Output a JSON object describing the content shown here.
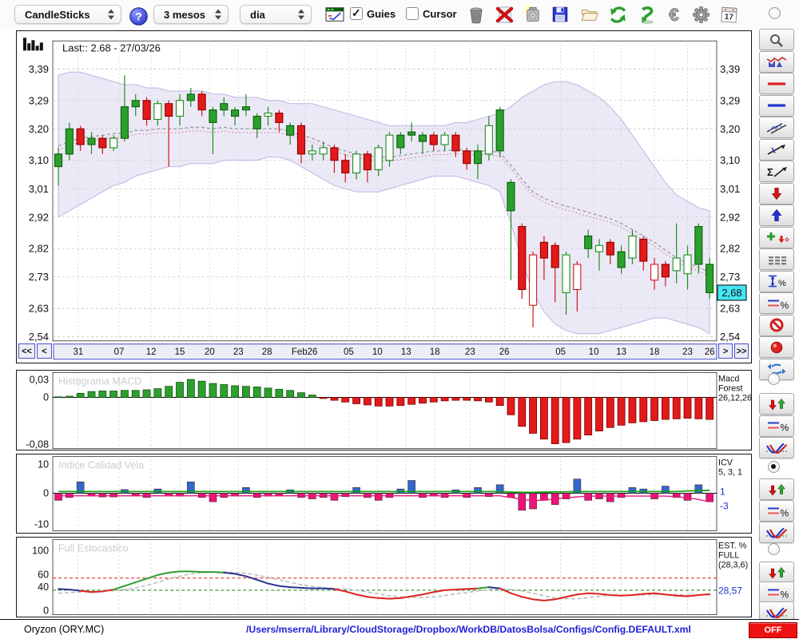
{
  "toolbar": {
    "chart_type_select": "CandleSticks",
    "period_select": "3 mesos",
    "interval_select": "dia",
    "guies_label": "Guies",
    "guies_checked": true,
    "cursor_label": "Cursor",
    "cursor_checked": false,
    "calendar_day": "17",
    "icons": [
      "help",
      "chart-config",
      "trash",
      "delete-red-x",
      "snapshot",
      "save",
      "open-folder",
      "refresh",
      "sync",
      "euro",
      "settings",
      "calendar"
    ]
  },
  "main_chart": {
    "last_label": "Last:: 2.68 - 27/03/26",
    "price_tag": "2,68",
    "nav": [
      "<<",
      "<",
      ">",
      ">>"
    ]
  },
  "panels": {
    "macd": {
      "title": "Histograma MACD",
      "y_top": "0,03",
      "y_zero": "0",
      "y_bottom": "-0,08",
      "right_lines": [
        "Macd",
        "Forest",
        "26,12,26"
      ]
    },
    "icv": {
      "title": "Indice Calidad Vela",
      "y_top": "10",
      "y_zero": "0",
      "y_bottom": "-10",
      "right_lines": [
        "ICV",
        "5, 3, 1"
      ],
      "value1": "1",
      "value2": "-3"
    },
    "stoch": {
      "title": "Full Estocastico",
      "y_labels": [
        "100",
        "60",
        "40",
        "0"
      ],
      "right_lines": [
        "EST. %",
        "FULL",
        "(28,3,6)"
      ],
      "value": "28,57"
    }
  },
  "sidebar": {
    "top_radio_selected": false,
    "tool_buttons": [
      "zoom",
      "price-volume-chart",
      "red-horizontal-line",
      "blue-horizontal-line",
      "channel",
      "trend-line",
      "sum-trend",
      "red-down-arrow",
      "blue-up-arrow",
      "add-markers",
      "data-table",
      "vertical-percent",
      "percent-lines",
      "disable",
      "record",
      "refresh-panels"
    ],
    "panel_groups": [
      {
        "panel": "macd",
        "radio_selected": false,
        "buttons": [
          "signal-arrows",
          "percent-lines",
          "indicator-curves"
        ]
      },
      {
        "panel": "icv",
        "radio_selected": true,
        "buttons": [
          "signal-arrows",
          "percent-lines",
          "indicator-curves"
        ]
      },
      {
        "panel": "stoch",
        "radio_selected": false,
        "buttons": [
          "signal-arrows",
          "percent-lines",
          "indicator-curves"
        ]
      }
    ]
  },
  "statusbar": {
    "symbol": "Oryzon (ORY.MC)",
    "config_path": "/Users/mserra/Library/CloudStorage/Dropbox/WorkDB/DatosBolsa/Configs/Config.DEFAULT.xml",
    "off_label": "OFF"
  },
  "colors": {
    "candle_up": "#2CA02C",
    "candle_up_stroke": "#0C5C0C",
    "candle_down": "#E31A1A",
    "candle_down_stroke": "#8B0000",
    "hollow_up_stroke": "#1E8E1E",
    "hollow_down_stroke": "#D01818",
    "band_fill": "#DAD4F0",
    "band_edge": "#B8AEE0",
    "sma_dash": "#909090",
    "sma_red": "#C87070",
    "macd_pos": "#2CA02C",
    "macd_neg": "#E31A1A",
    "icv_pos": "#3366CC",
    "icv_neg": "#EE1177",
    "icv_line_green": "#18A018",
    "icv_line_magenta": "#E8187D",
    "stoch_navy": "#283593",
    "stoch_green": "#2E9E2E",
    "stoch_red": "#DD2222",
    "stoch_d": "#BDBDBD",
    "threshold_red": "#E03030",
    "threshold_green": "#2E8B2E",
    "price_tag_bg": "#45E6F2",
    "blue_value": "#2233CC",
    "off_red": "#EE1111"
  },
  "chart_data": [
    {
      "type": "candlestick",
      "title": "Oryzon (ORY.MC) daily candles with Bollinger band",
      "ylim": [
        2.525,
        3.455
      ],
      "y_ticks": [
        3.39,
        3.29,
        3.2,
        3.1,
        3.01,
        2.92,
        2.82,
        2.73,
        2.63,
        2.54
      ],
      "y_labels": [
        "3,39",
        "3,29",
        "3,20",
        "3,10",
        "3,01",
        "2,92",
        "2,82",
        "2,73",
        "2,63",
        "2,54"
      ],
      "x_ticks": [
        {
          "label": "31",
          "i": 1.8
        },
        {
          "label": "07",
          "i": 5.5
        },
        {
          "label": "12",
          "i": 8.4
        },
        {
          "label": "15",
          "i": 11
        },
        {
          "label": "20",
          "i": 13.7
        },
        {
          "label": "23",
          "i": 16.3
        },
        {
          "label": "28",
          "i": 18.9
        },
        {
          "label": "Feb26",
          "i": 22.3
        },
        {
          "label": "05",
          "i": 26.3
        },
        {
          "label": "10",
          "i": 28.9
        },
        {
          "label": "13",
          "i": 31.5
        },
        {
          "label": "18",
          "i": 34.1
        },
        {
          "label": "23",
          "i": 37.3
        },
        {
          "label": "26",
          "i": 40.4
        },
        {
          "label": "05",
          "i": 45.5
        },
        {
          "label": "10",
          "i": 48.5
        },
        {
          "label": "13",
          "i": 51
        },
        {
          "label": "18",
          "i": 54
        },
        {
          "label": "23",
          "i": 57
        },
        {
          "label": "26",
          "i": 59
        }
      ],
      "last_close": 2.68,
      "last_date": "27/03/26",
      "candles": [
        [
          3.08,
          3.14,
          3.02,
          3.12,
          "g"
        ],
        [
          3.12,
          3.22,
          3.1,
          3.2,
          "g"
        ],
        [
          3.2,
          3.21,
          3.13,
          3.15,
          "r"
        ],
        [
          3.15,
          3.19,
          3.12,
          3.17,
          "g"
        ],
        [
          3.17,
          3.18,
          3.12,
          3.14,
          "r"
        ],
        [
          3.14,
          3.18,
          3.13,
          3.17,
          "G"
        ],
        [
          3.17,
          3.37,
          3.16,
          3.27,
          "g"
        ],
        [
          3.27,
          3.31,
          3.24,
          3.29,
          "g"
        ],
        [
          3.29,
          3.3,
          3.21,
          3.23,
          "r"
        ],
        [
          3.23,
          3.29,
          3.21,
          3.28,
          "G"
        ],
        [
          3.28,
          3.29,
          3.08,
          3.24,
          "r"
        ],
        [
          3.24,
          3.31,
          3.21,
          3.29,
          "G"
        ],
        [
          3.29,
          3.33,
          3.27,
          3.31,
          "g"
        ],
        [
          3.31,
          3.32,
          3.24,
          3.26,
          "r"
        ],
        [
          3.22,
          3.27,
          3.12,
          3.26,
          "g"
        ],
        [
          3.26,
          3.3,
          3.24,
          3.28,
          "g"
        ],
        [
          3.24,
          3.27,
          3.21,
          3.26,
          "g"
        ],
        [
          3.26,
          3.31,
          3.24,
          3.27,
          "g"
        ],
        [
          3.2,
          3.25,
          3.17,
          3.24,
          "g"
        ],
        [
          3.24,
          3.27,
          3.21,
          3.25,
          "G"
        ],
        [
          3.25,
          3.26,
          3.19,
          3.22,
          "r"
        ],
        [
          3.18,
          3.22,
          3.15,
          3.21,
          "g"
        ],
        [
          3.21,
          3.22,
          3.09,
          3.12,
          "r"
        ],
        [
          3.12,
          3.15,
          3.1,
          3.13,
          "G"
        ],
        [
          3.12,
          3.16,
          3.1,
          3.14,
          "G"
        ],
        [
          3.14,
          3.15,
          3.06,
          3.1,
          "r"
        ],
        [
          3.1,
          3.12,
          3.03,
          3.06,
          "r"
        ],
        [
          3.06,
          3.13,
          3.04,
          3.12,
          "G"
        ],
        [
          3.12,
          3.13,
          3.03,
          3.07,
          "r"
        ],
        [
          3.07,
          3.15,
          3.05,
          3.14,
          "G"
        ],
        [
          3.1,
          3.19,
          3.08,
          3.18,
          "G"
        ],
        [
          3.14,
          3.19,
          3.12,
          3.18,
          "g"
        ],
        [
          3.18,
          3.22,
          3.16,
          3.19,
          "g"
        ],
        [
          3.16,
          3.19,
          3.12,
          3.18,
          "g"
        ],
        [
          3.18,
          3.19,
          3.13,
          3.15,
          "r"
        ],
        [
          3.15,
          3.19,
          3.13,
          3.18,
          "G"
        ],
        [
          3.18,
          3.19,
          3.11,
          3.13,
          "r"
        ],
        [
          3.13,
          3.14,
          3.07,
          3.09,
          "r"
        ],
        [
          3.09,
          3.15,
          3.04,
          3.13,
          "g"
        ],
        [
          3.12,
          3.24,
          3.1,
          3.21,
          "G"
        ],
        [
          3.13,
          3.27,
          3.11,
          3.26,
          "g"
        ],
        [
          2.94,
          3.04,
          2.72,
          3.03,
          "g"
        ],
        [
          2.89,
          2.9,
          2.66,
          2.69,
          "r"
        ],
        [
          2.64,
          2.81,
          2.57,
          2.8,
          "R"
        ],
        [
          2.84,
          2.86,
          2.72,
          2.79,
          "r"
        ],
        [
          2.83,
          2.84,
          2.65,
          2.76,
          "r"
        ],
        [
          2.68,
          2.81,
          2.61,
          2.8,
          "G"
        ],
        [
          2.77,
          2.78,
          2.62,
          2.69,
          "R"
        ],
        [
          2.82,
          2.88,
          2.79,
          2.86,
          "g"
        ],
        [
          2.81,
          2.85,
          2.75,
          2.83,
          "G"
        ],
        [
          2.84,
          2.85,
          2.77,
          2.8,
          "r"
        ],
        [
          2.76,
          2.83,
          2.74,
          2.81,
          "g"
        ],
        [
          2.79,
          2.88,
          2.77,
          2.86,
          "G"
        ],
        [
          2.85,
          2.86,
          2.75,
          2.78,
          "r"
        ],
        [
          2.72,
          2.79,
          2.69,
          2.77,
          "R"
        ],
        [
          2.77,
          2.78,
          2.7,
          2.73,
          "r"
        ],
        [
          2.75,
          2.9,
          2.71,
          2.79,
          "G"
        ],
        [
          2.74,
          2.83,
          2.69,
          2.8,
          "G"
        ],
        [
          2.77,
          2.9,
          2.74,
          2.89,
          "g"
        ],
        [
          2.77,
          2.79,
          2.66,
          2.68,
          "g"
        ]
      ],
      "bollinger": {
        "upper": [
          3.37,
          3.38,
          3.38,
          3.37,
          3.36,
          3.35,
          3.34,
          3.34,
          3.33,
          3.33,
          3.32,
          3.32,
          3.32,
          3.32,
          3.31,
          3.31,
          3.3,
          3.3,
          3.3,
          3.29,
          3.29,
          3.28,
          3.28,
          3.28,
          3.27,
          3.26,
          3.25,
          3.24,
          3.23,
          3.22,
          3.21,
          3.21,
          3.21,
          3.21,
          3.21,
          3.21,
          3.22,
          3.22,
          3.23,
          3.24,
          3.25,
          3.27,
          3.3,
          3.32,
          3.34,
          3.35,
          3.35,
          3.34,
          3.32,
          3.3,
          3.27,
          3.23,
          3.18,
          3.13,
          3.08,
          3.03,
          2.99,
          2.97,
          2.95,
          2.94
        ],
        "lower": [
          2.92,
          2.94,
          2.96,
          2.98,
          3.0,
          3.02,
          3.03,
          3.05,
          3.06,
          3.07,
          3.08,
          3.08,
          3.09,
          3.09,
          3.09,
          3.1,
          3.1,
          3.1,
          3.1,
          3.11,
          3.11,
          3.1,
          3.08,
          3.06,
          3.04,
          3.02,
          3.01,
          3.0,
          3.0,
          3.0,
          3.01,
          3.02,
          3.03,
          3.04,
          3.05,
          3.05,
          3.05,
          3.04,
          3.03,
          3.02,
          3.0,
          2.9,
          2.78,
          2.68,
          2.62,
          2.58,
          2.56,
          2.55,
          2.55,
          2.55,
          2.56,
          2.57,
          2.58,
          2.59,
          2.6,
          2.6,
          2.59,
          2.58,
          2.57,
          2.55
        ]
      }
    },
    {
      "type": "bar",
      "title": "Histograma MACD",
      "ylim": [
        -0.085,
        0.037
      ],
      "params": "26,12,26",
      "values": [
        0.001,
        0.002,
        0.007,
        0.01,
        0.011,
        0.011,
        0.012,
        0.012,
        0.013,
        0.015,
        0.019,
        0.026,
        0.031,
        0.028,
        0.024,
        0.022,
        0.02,
        0.019,
        0.018,
        0.016,
        0.014,
        0.012,
        0.008,
        0.004,
        -0.002,
        -0.005,
        -0.008,
        -0.011,
        -0.013,
        -0.015,
        -0.015,
        -0.014,
        -0.012,
        -0.01,
        -0.008,
        -0.006,
        -0.005,
        -0.005,
        -0.006,
        -0.008,
        -0.014,
        -0.03,
        -0.05,
        -0.062,
        -0.072,
        -0.08,
        -0.078,
        -0.072,
        -0.065,
        -0.058,
        -0.052,
        -0.048,
        -0.044,
        -0.042,
        -0.04,
        -0.038,
        -0.037,
        -0.036,
        -0.037,
        -0.038
      ]
    },
    {
      "type": "bar",
      "title": "Indice Calidad Vela",
      "ylim": [
        -13,
        13
      ],
      "params": "5, 3, 1",
      "values": [
        -2.5,
        -1.5,
        4,
        -1,
        -1.3,
        -1.3,
        1.3,
        -1,
        -1.5,
        1.5,
        -1,
        -1,
        4,
        -1.5,
        -3,
        -1.5,
        -1,
        2,
        -1.5,
        -1,
        -1,
        1.2,
        -1.5,
        -2,
        -1.5,
        -2.5,
        -1.2,
        2,
        -1.5,
        -2.5,
        -1.5,
        1.5,
        4.5,
        -1.5,
        -1,
        -1.5,
        1.2,
        -1.5,
        2,
        -1.2,
        3,
        -1.5,
        -6,
        -5.5,
        -2.5,
        -4,
        -2,
        5,
        -2.5,
        -2,
        -3,
        -1.5,
        2,
        1.5,
        -2,
        2.5,
        -1.5,
        -2.5,
        3,
        -3
      ],
      "line_green": [
        0.6,
        0.6,
        0.6,
        0.6,
        0.6,
        0.6,
        0.6,
        0.6,
        0.6,
        0.6,
        0.6,
        0.6,
        0.6,
        0.6,
        0.6,
        0.6,
        0.6,
        0.6,
        0.6,
        0.6,
        0.6,
        0.6,
        0.6,
        0.6,
        0.6,
        0.6,
        0.6,
        0.6,
        0.6,
        0.6,
        0.6,
        0.6,
        0.6,
        0.6,
        0.6,
        0.6,
        0.6,
        0.6,
        0.6,
        0.6,
        0.6,
        0.4,
        0.3,
        0.3,
        0.4,
        0.5,
        0.5,
        0.6,
        0.6,
        0.6,
        0.6,
        0.6,
        0.6,
        0.6,
        0.6,
        0.6,
        0.6,
        0.8,
        0.9,
        1.0
      ],
      "line_magenta": [
        -0.9,
        -0.9,
        -0.9,
        -0.9,
        -0.9,
        -0.9,
        -0.9,
        -0.9,
        -0.9,
        -0.9,
        -0.9,
        -0.9,
        -0.9,
        -0.9,
        -0.9,
        -0.9,
        -0.9,
        -0.9,
        -0.9,
        -0.9,
        -0.9,
        -0.9,
        -0.9,
        -0.9,
        -0.9,
        -0.9,
        -0.9,
        -0.9,
        -0.9,
        -0.9,
        -0.9,
        -0.9,
        -0.9,
        -0.9,
        -0.9,
        -0.9,
        -0.9,
        -0.9,
        -0.9,
        -0.9,
        -0.9,
        -1.5,
        -2.2,
        -2.6,
        -2.4,
        -2.0,
        -1.6,
        -1.3,
        -1.0,
        -1.0,
        -1.0,
        -1.0,
        -1.0,
        -1.0,
        -1.0,
        -1.0,
        -1.2,
        -1.6,
        -2.2,
        -3.0
      ],
      "current_values": [
        1,
        -3
      ]
    },
    {
      "type": "line",
      "title": "Full Estocastico",
      "ylim": [
        0,
        100
      ],
      "params": "(28,3,6)",
      "thresholds": {
        "upper": 55,
        "lower": 35
      },
      "k": [
        37,
        36,
        34,
        32,
        33,
        36,
        42,
        48,
        54,
        60,
        64,
        66,
        66,
        65,
        65,
        64,
        62,
        58,
        52,
        46,
        42,
        40,
        39,
        38,
        38,
        37,
        33,
        28,
        24,
        22,
        21,
        22,
        25,
        28,
        32,
        35,
        36,
        37,
        38,
        40,
        38,
        30,
        24,
        20,
        18,
        20,
        24,
        28,
        30,
        29,
        27,
        26,
        27,
        29,
        30,
        28,
        26,
        25,
        27,
        28.57
      ],
      "d": [
        30,
        31,
        32,
        33,
        34,
        34,
        36,
        39,
        43,
        48,
        54,
        58,
        62,
        64,
        65,
        65,
        64,
        63,
        60,
        56,
        52,
        48,
        44,
        41,
        39,
        38,
        37,
        35,
        32,
        29,
        26,
        24,
        23,
        23,
        24,
        26,
        29,
        31,
        34,
        36,
        37,
        36,
        34,
        30,
        26,
        22,
        21,
        21,
        23,
        25,
        27,
        27,
        27,
        27,
        28,
        28,
        28,
        27,
        27,
        27
      ],
      "current_value": 28.57
    }
  ]
}
